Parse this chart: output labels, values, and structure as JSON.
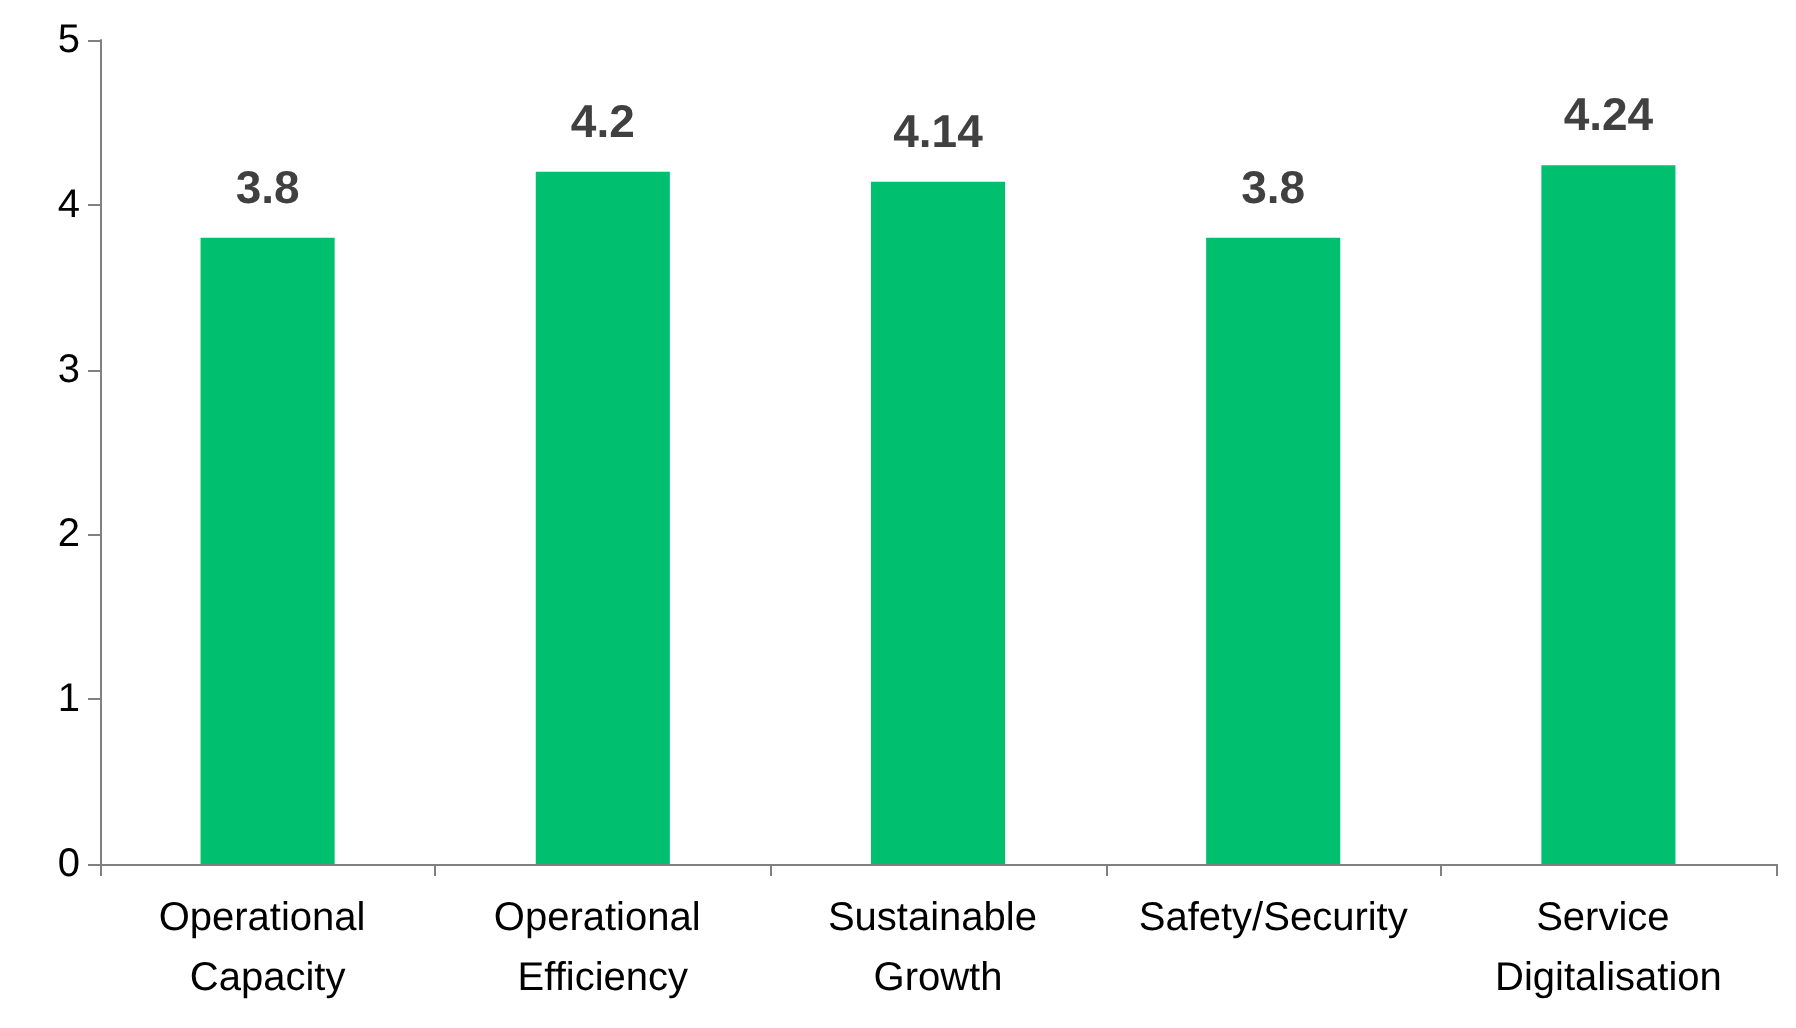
{
  "chart_data": {
    "type": "bar",
    "categories": [
      "Operational Capacity",
      "Operational Efficiency",
      "Sustainable Growth",
      "Safety/Security",
      "Service Digitalisation"
    ],
    "values": [
      3.8,
      4.2,
      4.14,
      3.8,
      4.24
    ],
    "color": "#00c070",
    "ylim": [
      0,
      5
    ],
    "yticks": [
      0,
      1,
      2,
      3,
      4,
      5
    ],
    "grid": false,
    "data_labels": true
  }
}
